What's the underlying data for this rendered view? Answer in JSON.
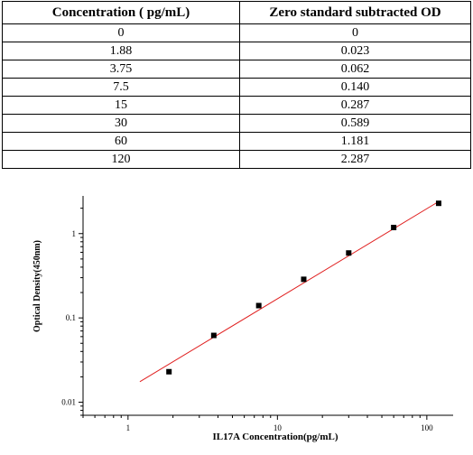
{
  "table": {
    "headers": [
      "Concentration ( pg/mL)",
      "Zero standard subtracted OD"
    ],
    "rows": [
      [
        "0",
        "0"
      ],
      [
        "1.88",
        "0.023"
      ],
      [
        "3.75",
        "0.062"
      ],
      [
        "7.5",
        "0.140"
      ],
      [
        "15",
        "0.287"
      ],
      [
        "30",
        "0.589"
      ],
      [
        "60",
        "1.181"
      ],
      [
        "120",
        "2.287"
      ]
    ]
  },
  "chart_data": {
    "type": "scatter",
    "x_scale": "log",
    "y_scale": "log",
    "xlabel": "IL17A  Concentration(pg/mL)",
    "ylabel": "Optical Density(450nm)",
    "xlim": [
      0.5,
      150
    ],
    "ylim": [
      0.007,
      2.8
    ],
    "x_ticks": [
      1,
      10,
      100
    ],
    "x_tick_labels": [
      "1",
      "10",
      "100"
    ],
    "y_ticks": [
      0.01,
      0.1,
      1
    ],
    "y_tick_labels": [
      "0.01",
      "0.1",
      "1"
    ],
    "series": [
      {
        "x": [
          1.88,
          3.75,
          7.5,
          15,
          30,
          60,
          120
        ],
        "y": [
          0.023,
          0.062,
          0.14,
          0.287,
          0.589,
          1.181,
          2.287
        ],
        "marker": "square",
        "color": "#000000"
      }
    ],
    "fit_line": {
      "x": [
        1.2,
        120
      ],
      "y": [
        0.0175,
        2.4
      ],
      "color": "#e02020"
    },
    "grid": false
  }
}
